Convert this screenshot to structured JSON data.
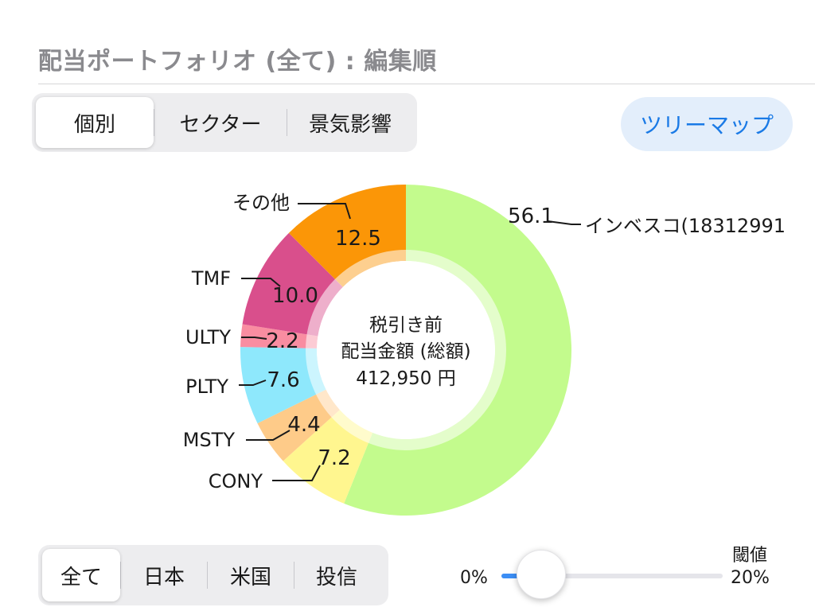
{
  "header": {
    "title": "配当ポートフォリオ (全て) : 編集順"
  },
  "view_tabs": [
    {
      "label": "個別",
      "active": true
    },
    {
      "label": "セクター",
      "active": false
    },
    {
      "label": "景気影響",
      "active": false
    }
  ],
  "treemap_button": {
    "label": "ツリーマップ"
  },
  "chart_data": {
    "type": "pie",
    "style": "donut",
    "center": {
      "line1": "税引き前",
      "line2": "配当金額 (総額)",
      "line3": "412,950 円"
    },
    "slices": [
      {
        "name": "インベスコ(18312991",
        "value": 56.1,
        "label": "56.1",
        "color": "#c3fb8d"
      },
      {
        "name": "CONY",
        "value": 7.2,
        "label": "7.2",
        "color": "#fff68f"
      },
      {
        "name": "MSTY",
        "value": 4.4,
        "label": "4.4",
        "color": "#fecb89"
      },
      {
        "name": "PLTY",
        "value": 7.6,
        "label": "7.6",
        "color": "#8ee8fc"
      },
      {
        "name": "ULTY",
        "value": 2.2,
        "label": "2.2",
        "color": "#f98da1"
      },
      {
        "name": "TMF",
        "value": 10.0,
        "label": "10.0",
        "color": "#d94f8c"
      },
      {
        "name": "その他",
        "value": 12.5,
        "label": "12.5",
        "color": "#fb9607"
      }
    ]
  },
  "region_tabs": [
    {
      "label": "全て",
      "active": true
    },
    {
      "label": "日本",
      "active": false
    },
    {
      "label": "米国",
      "active": false
    },
    {
      "label": "投信",
      "active": false
    }
  ],
  "threshold": {
    "label": "閾値",
    "min_label": "0%",
    "max_label": "20%",
    "value_fraction": 0.18
  }
}
